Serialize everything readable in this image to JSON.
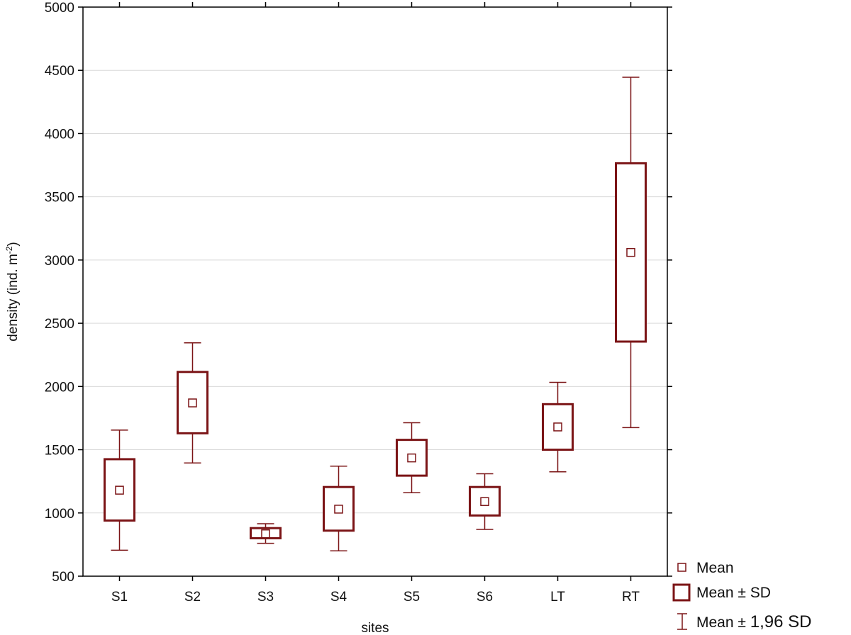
{
  "chart_data": {
    "type": "box",
    "categories": [
      "S1",
      "S2",
      "S3",
      "S4",
      "S5",
      "S6",
      "LT",
      "RT"
    ],
    "series": [
      {
        "stat": "mean",
        "values": [
          1180,
          1870,
          835,
          1030,
          1435,
          1090,
          1680,
          3060
        ]
      },
      {
        "stat": "minus_sd",
        "values": [
          940,
          1630,
          800,
          860,
          1295,
          980,
          1500,
          2355
        ]
      },
      {
        "stat": "plus_sd",
        "values": [
          1425,
          2115,
          880,
          1205,
          1578,
          1205,
          1860,
          3765
        ]
      },
      {
        "stat": "minus_1.96sd",
        "values": [
          705,
          1395,
          760,
          700,
          1160,
          870,
          1325,
          1675
        ]
      },
      {
        "stat": "plus_1.96sd",
        "values": [
          1655,
          2345,
          915,
          1370,
          1713,
          1310,
          2033,
          4445
        ]
      }
    ],
    "ylim": [
      500,
      5000
    ],
    "yticks": [
      "500",
      "1000",
      "1500",
      "2000",
      "2500",
      "3000",
      "3500",
      "4000",
      "4500",
      "5000"
    ],
    "ylabel": {
      "main": "density (ind. m",
      "sup": "-2",
      "end": ")"
    },
    "xlabel": "sites",
    "grid": "horizontal",
    "color": "#7b1416",
    "legend": {
      "position": "bottom-right",
      "items": [
        {
          "marker": "mean-square",
          "label": "Mean"
        },
        {
          "marker": "sd-box",
          "label": "Mean ± SD"
        },
        {
          "marker": "whisker",
          "label_pre": "Mean ± ",
          "label_big": "1,96 SD"
        }
      ]
    }
  }
}
